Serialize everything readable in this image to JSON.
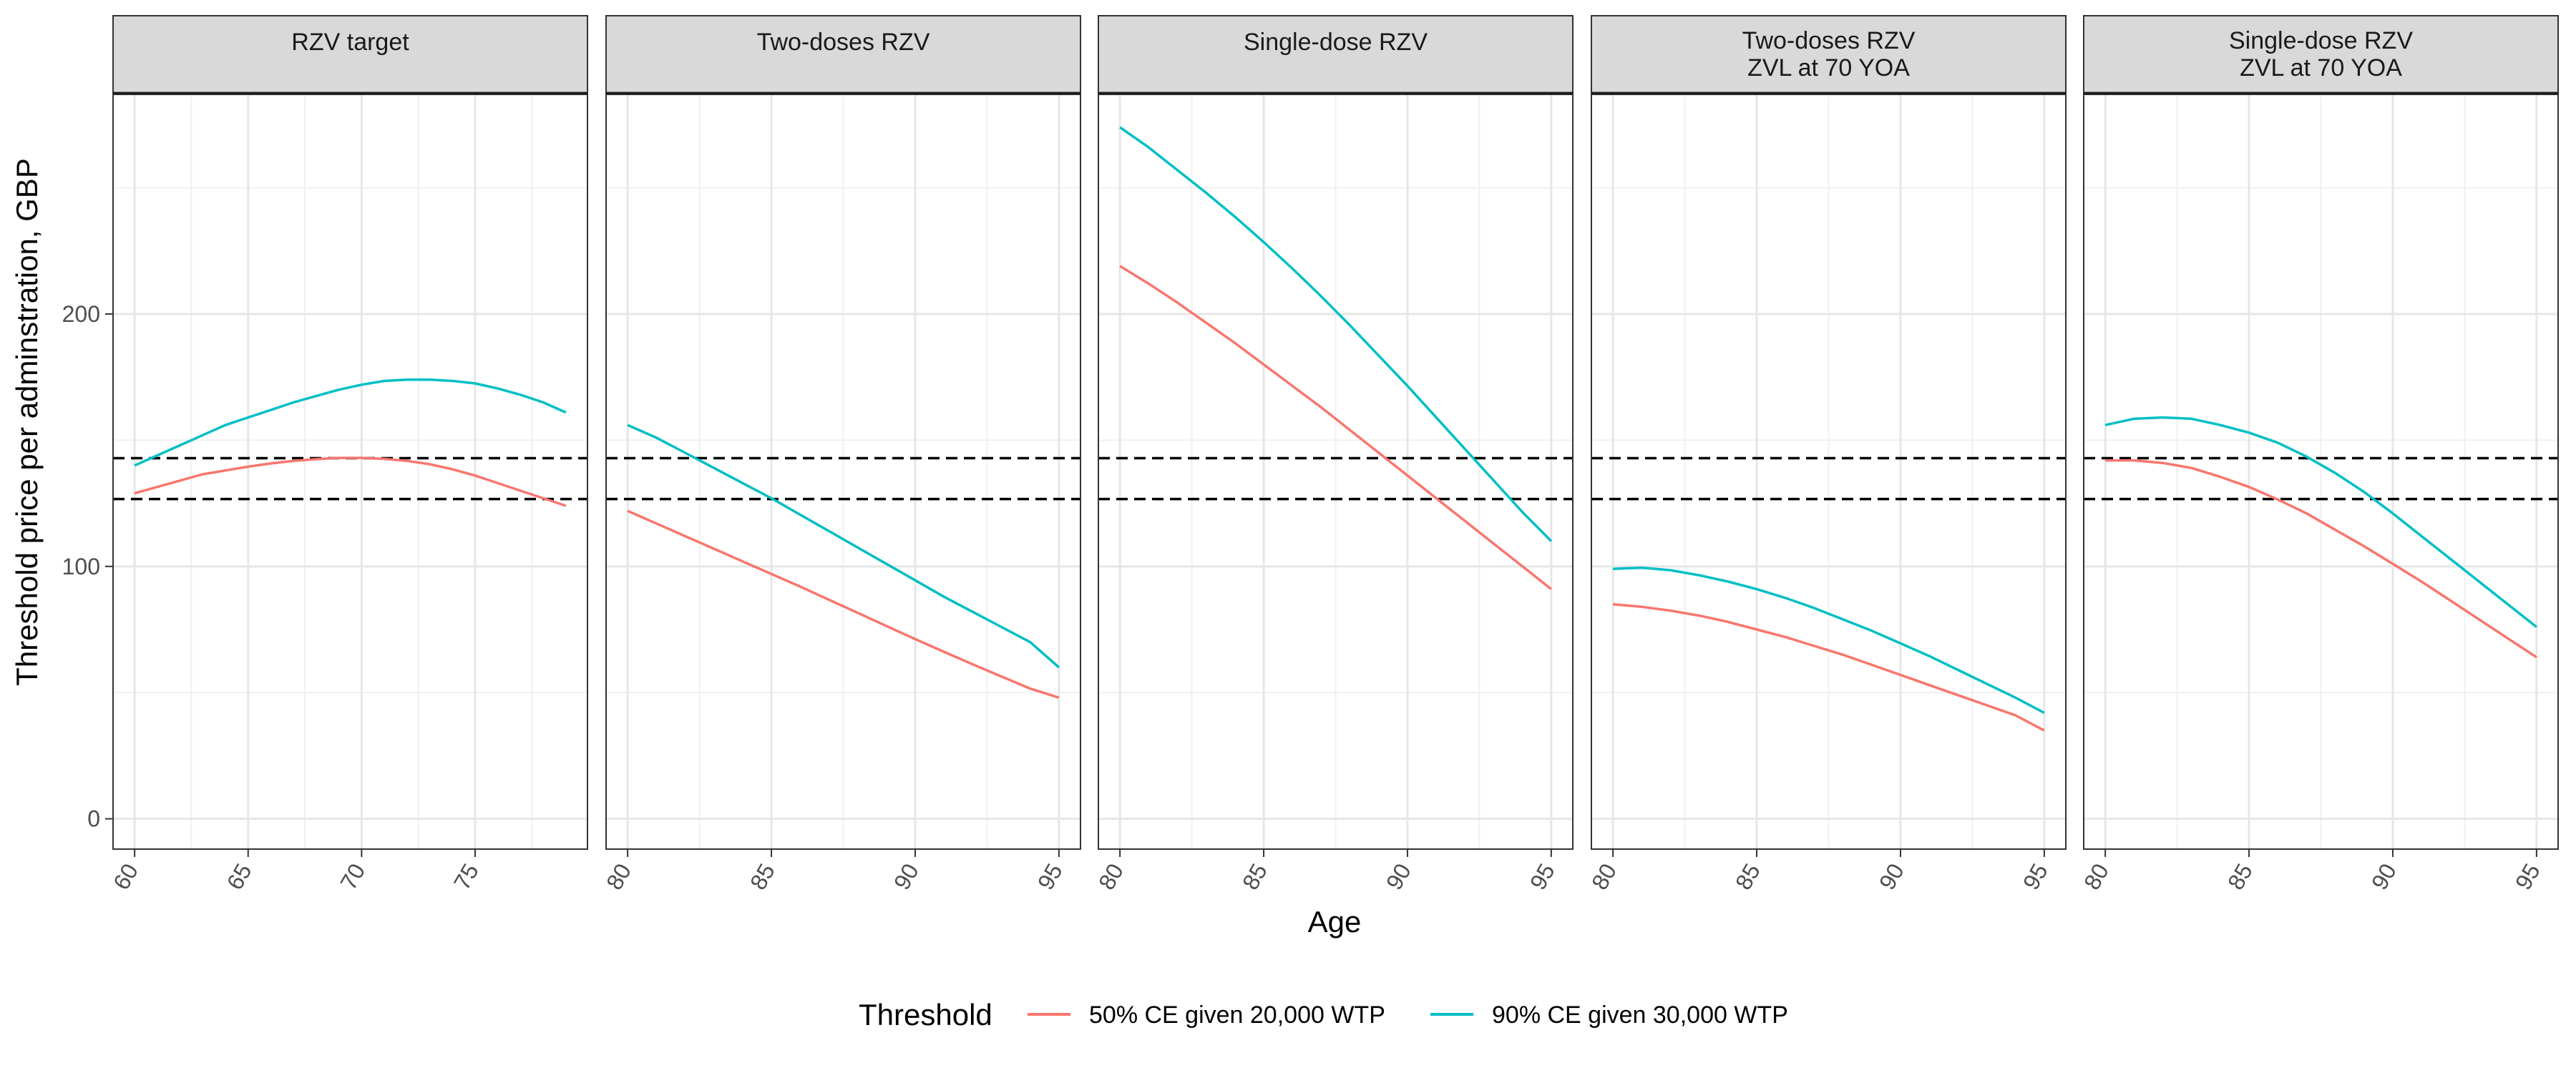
{
  "chart_data": {
    "type": "line",
    "xlabel": "Age",
    "ylabel": "Threshold price per adminstration, GBP",
    "ylim": [
      -12,
      287
    ],
    "y_ticks": [
      0,
      100,
      200
    ],
    "grid": true,
    "reference_lines": [
      126.7,
      142.9
    ],
    "legend": {
      "title": "Threshold",
      "position": "bottom",
      "entries": [
        {
          "name": "50% CE given 20,000 WTP",
          "color": "#F8766D"
        },
        {
          "name": "90% CE given 30,000 WTP",
          "color": "#00BFC4"
        }
      ]
    },
    "panels": [
      {
        "title": [
          "RZV target"
        ],
        "xlim": [
          59.05,
          79.95
        ],
        "x_ticks": [
          60,
          65,
          70,
          75
        ],
        "series": [
          {
            "name": "50% CE given 20,000 WTP",
            "color": "#F8766D",
            "x": [
              60,
              61,
              62,
              63,
              64,
              65,
              66,
              67,
              68,
              69,
              70,
              71,
              72,
              73,
              74,
              75,
              76,
              77,
              78,
              79
            ],
            "y": [
              129,
              131.5,
              134,
              136.5,
              138,
              139.5,
              140.8,
              141.8,
              142.5,
              143,
              143,
              142.6,
              141.8,
              140.5,
              138.5,
              136,
              133,
              130,
              127,
              124
            ]
          },
          {
            "name": "90% CE given 30,000 WTP",
            "color": "#00BFC4",
            "x": [
              60,
              61,
              62,
              63,
              64,
              65,
              66,
              67,
              68,
              69,
              70,
              71,
              72,
              73,
              74,
              75,
              76,
              77,
              78,
              79
            ],
            "y": [
              140,
              144,
              148,
              152,
              156,
              159,
              162,
              165,
              167.5,
              170,
              172,
              173.5,
              174,
              174,
              173.5,
              172.5,
              170.5,
              168,
              165,
              161
            ]
          }
        ]
      },
      {
        "title": [
          "Two-doses RZV"
        ],
        "xlim": [
          79.25,
          95.75
        ],
        "x_ticks": [
          80,
          85,
          90,
          95
        ],
        "series": [
          {
            "name": "50% CE given 20,000 WTP",
            "color": "#F8766D",
            "x": [
              80,
              81,
              82,
              83,
              84,
              85,
              86,
              87,
              88,
              89,
              90,
              91,
              92,
              93,
              94,
              95
            ],
            "y": [
              122,
              117,
              112,
              107,
              102,
              97,
              92,
              86.8,
              81.6,
              76.4,
              71.2,
              66.2,
              61.2,
              56.4,
              51.6,
              48
            ]
          },
          {
            "name": "90% CE given 30,000 WTP",
            "color": "#00BFC4",
            "x": [
              80,
              81,
              82,
              83,
              84,
              85,
              86,
              87,
              88,
              89,
              90,
              91,
              92,
              93,
              94,
              95
            ],
            "y": [
              156,
              151,
              145,
              139,
              133,
              127,
              120.5,
              114,
              107.5,
              101,
              94.5,
              88,
              82,
              76,
              70,
              60
            ]
          }
        ]
      },
      {
        "title": [
          "Single-dose RZV"
        ],
        "xlim": [
          79.25,
          95.75
        ],
        "x_ticks": [
          80,
          85,
          90,
          95
        ],
        "series": [
          {
            "name": "50% CE given 20,000 WTP",
            "color": "#F8766D",
            "x": [
              80,
              81,
              82,
              83,
              84,
              85,
              86,
              87,
              88,
              89,
              90,
              91,
              92,
              93,
              94,
              95
            ],
            "y": [
              219,
              212,
              204.5,
              196.5,
              188.5,
              180,
              171.5,
              163,
              154,
              145,
              136,
              127,
              118,
              109,
              100,
              91
            ]
          },
          {
            "name": "90% CE given 30,000 WTP",
            "color": "#00BFC4",
            "x": [
              80,
              81,
              82,
              83,
              84,
              85,
              86,
              87,
              88,
              89,
              90,
              91,
              92,
              93,
              94,
              95
            ],
            "y": [
              274,
              266,
              257,
              248,
              238.5,
              228.5,
              218,
              207,
              195.5,
              183.5,
              171.5,
              159,
              146.5,
              134,
              121.5,
              110
            ]
          }
        ]
      },
      {
        "title": [
          "Two-doses RZV",
          "ZVL at 70 YOA"
        ],
        "xlim": [
          79.25,
          95.75
        ],
        "x_ticks": [
          80,
          85,
          90,
          95
        ],
        "series": [
          {
            "name": "50% CE given 20,000 WTP",
            "color": "#F8766D",
            "x": [
              80,
              81,
              82,
              83,
              84,
              85,
              86,
              87,
              88,
              89,
              90,
              91,
              92,
              93,
              94,
              95
            ],
            "y": [
              85,
              84,
              82.5,
              80.5,
              78,
              75,
              72,
              68.5,
              65,
              61,
              57,
              53,
              49,
              45,
              41,
              35
            ]
          },
          {
            "name": "90% CE given 30,000 WTP",
            "color": "#00BFC4",
            "x": [
              80,
              81,
              82,
              83,
              84,
              85,
              86,
              87,
              88,
              89,
              90,
              91,
              92,
              93,
              94,
              95
            ],
            "y": [
              99,
              99.5,
              98.5,
              96.5,
              94,
              91,
              87.5,
              83.5,
              79,
              74.5,
              69.5,
              64.5,
              59,
              53.5,
              48,
              42
            ]
          }
        ]
      },
      {
        "title": [
          "Single-dose RZV",
          "ZVL at 70 YOA"
        ],
        "xlim": [
          79.25,
          95.75
        ],
        "x_ticks": [
          80,
          85,
          90,
          95
        ],
        "series": [
          {
            "name": "50% CE given 20,000 WTP",
            "color": "#F8766D",
            "x": [
              80,
              81,
              82,
              83,
              84,
              85,
              86,
              87,
              88,
              89,
              90,
              91,
              92,
              93,
              94,
              95
            ],
            "y": [
              142,
              142,
              141,
              139,
              135.5,
              131.5,
              126.5,
              121,
              114.5,
              108,
              101,
              94,
              86.5,
              79,
              71.5,
              64
            ]
          },
          {
            "name": "90% CE given 30,000 WTP",
            "color": "#00BFC4",
            "x": [
              80,
              81,
              82,
              83,
              84,
              85,
              86,
              87,
              88,
              89,
              90,
              91,
              92,
              93,
              94,
              95
            ],
            "y": [
              156,
              158.5,
              159,
              158.5,
              156,
              153,
              149,
              143.5,
              137,
              129.5,
              121,
              112,
              103,
              94,
              85,
              76
            ]
          }
        ]
      }
    ]
  }
}
